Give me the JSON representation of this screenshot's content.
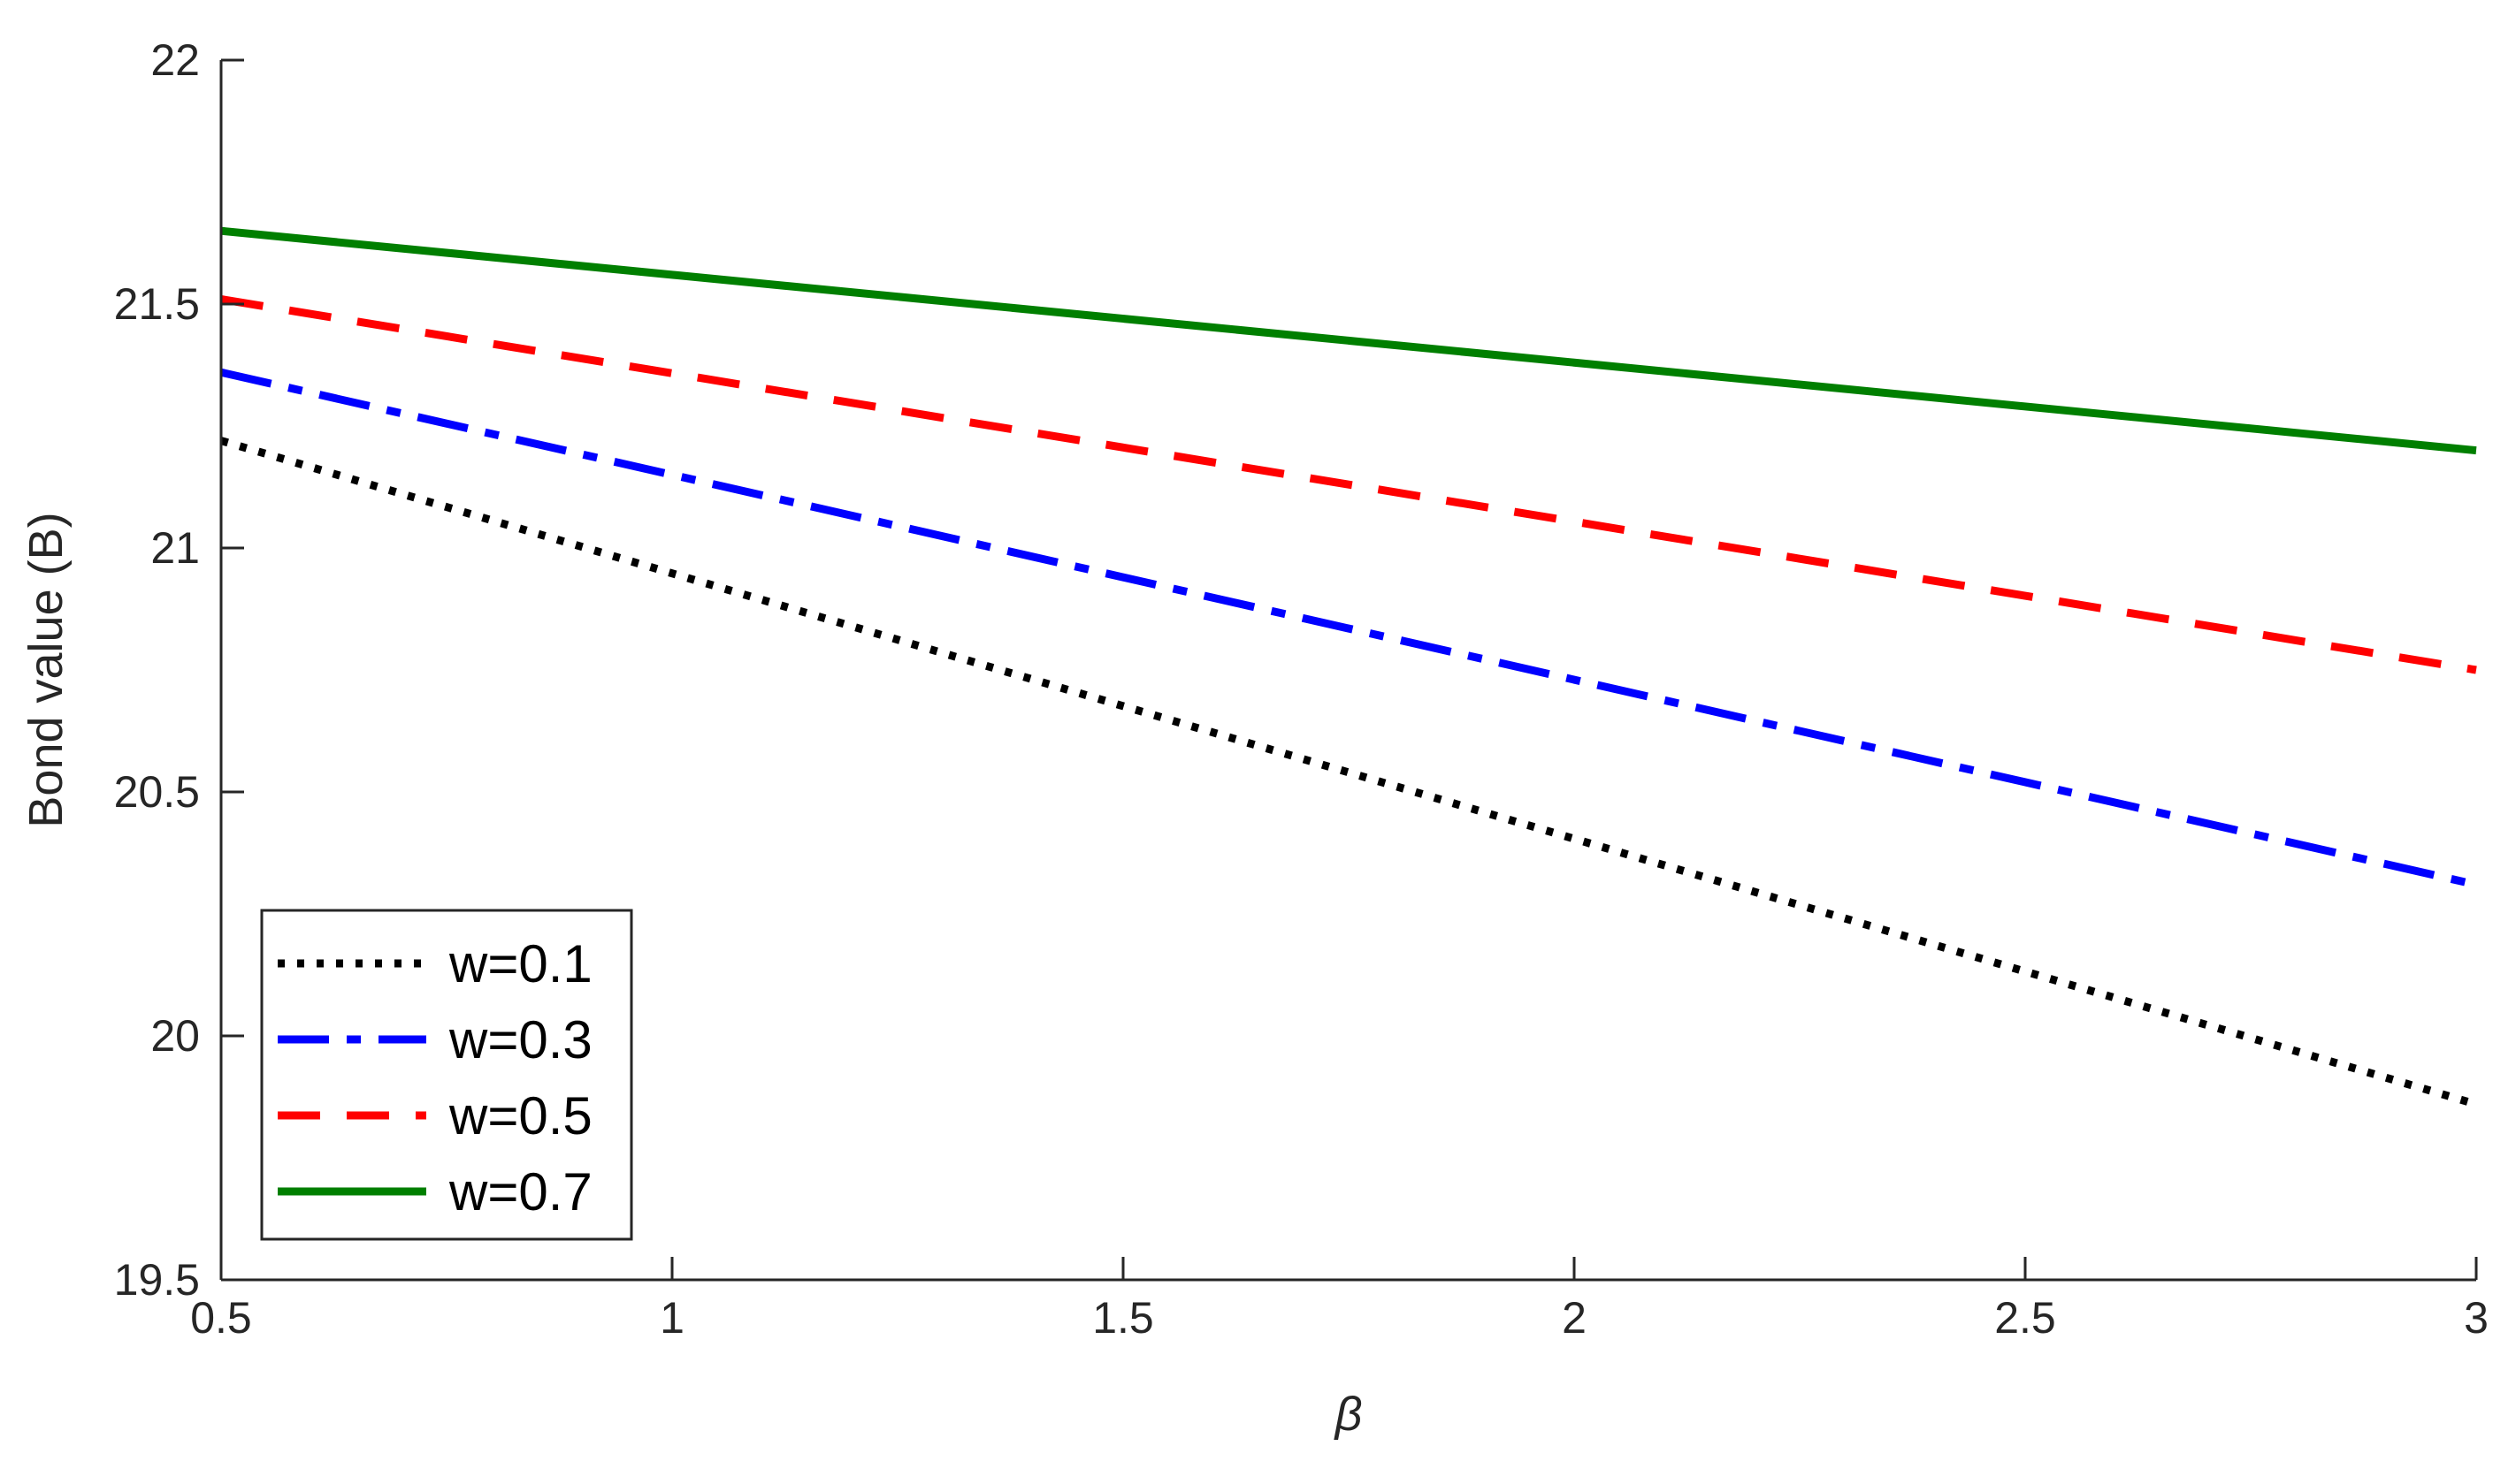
{
  "chart_data": {
    "type": "line",
    "title": "",
    "xlabel": "β",
    "ylabel": "Bond value (B)",
    "xlim": [
      0.5,
      3
    ],
    "ylim": [
      19.5,
      22
    ],
    "xticks": [
      0.5,
      1,
      1.5,
      2,
      2.5,
      3
    ],
    "yticks": [
      19.5,
      20,
      20.5,
      21,
      21.5,
      22
    ],
    "xtick_labels": [
      "0.5",
      "1",
      "1.5",
      "2",
      "2.5",
      "3"
    ],
    "ytick_labels": [
      "19.5",
      "20",
      "20.5",
      "21",
      "21.5",
      "22"
    ],
    "grid": false,
    "legend_position": "bottom-left",
    "x": [
      0.5,
      3
    ],
    "series": [
      {
        "name": "w=0.1",
        "values": [
          21.22,
          19.86
        ],
        "color": "#000000",
        "style": "dotted"
      },
      {
        "name": "w=0.3",
        "values": [
          21.36,
          20.31
        ],
        "color": "#0000ff",
        "style": "dash-dot"
      },
      {
        "name": "w=0.5",
        "values": [
          21.51,
          20.75
        ],
        "color": "#ff0000",
        "style": "dashed"
      },
      {
        "name": "w=0.7",
        "values": [
          21.65,
          21.2
        ],
        "color": "#007f00",
        "style": "solid"
      }
    ]
  }
}
